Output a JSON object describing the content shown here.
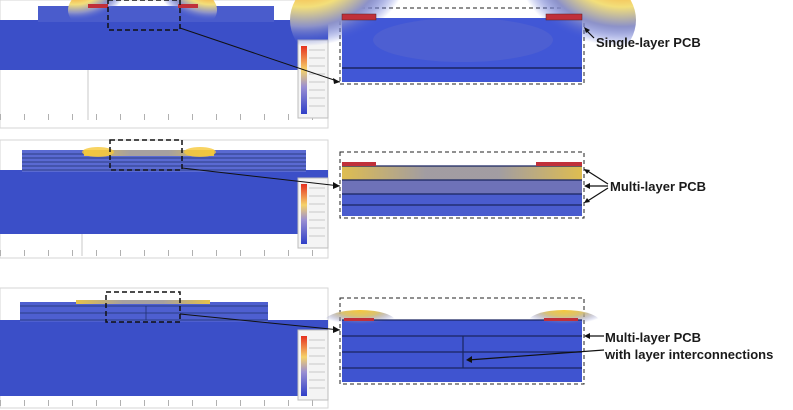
{
  "labels": {
    "single": "Single-layer PCB",
    "multi": "Multi-layer PCB",
    "interconnect_line1": "Multi-layer PCB",
    "interconnect_line2": "with layer interconnections"
  },
  "colors": {
    "background": "#3b4fc8",
    "board_base": "#4157d6",
    "hot": "#e83a1a",
    "warm": "#f6d85c",
    "pad": "#c0303a",
    "grid": "#cfcfcf"
  },
  "panels": [
    {
      "id": "single-layer",
      "layers": 1,
      "interconnections": false
    },
    {
      "id": "multi-layer",
      "layers": 6,
      "interconnections": false
    },
    {
      "id": "multi-layer-interconnected",
      "layers": 4,
      "interconnections": true
    }
  ]
}
